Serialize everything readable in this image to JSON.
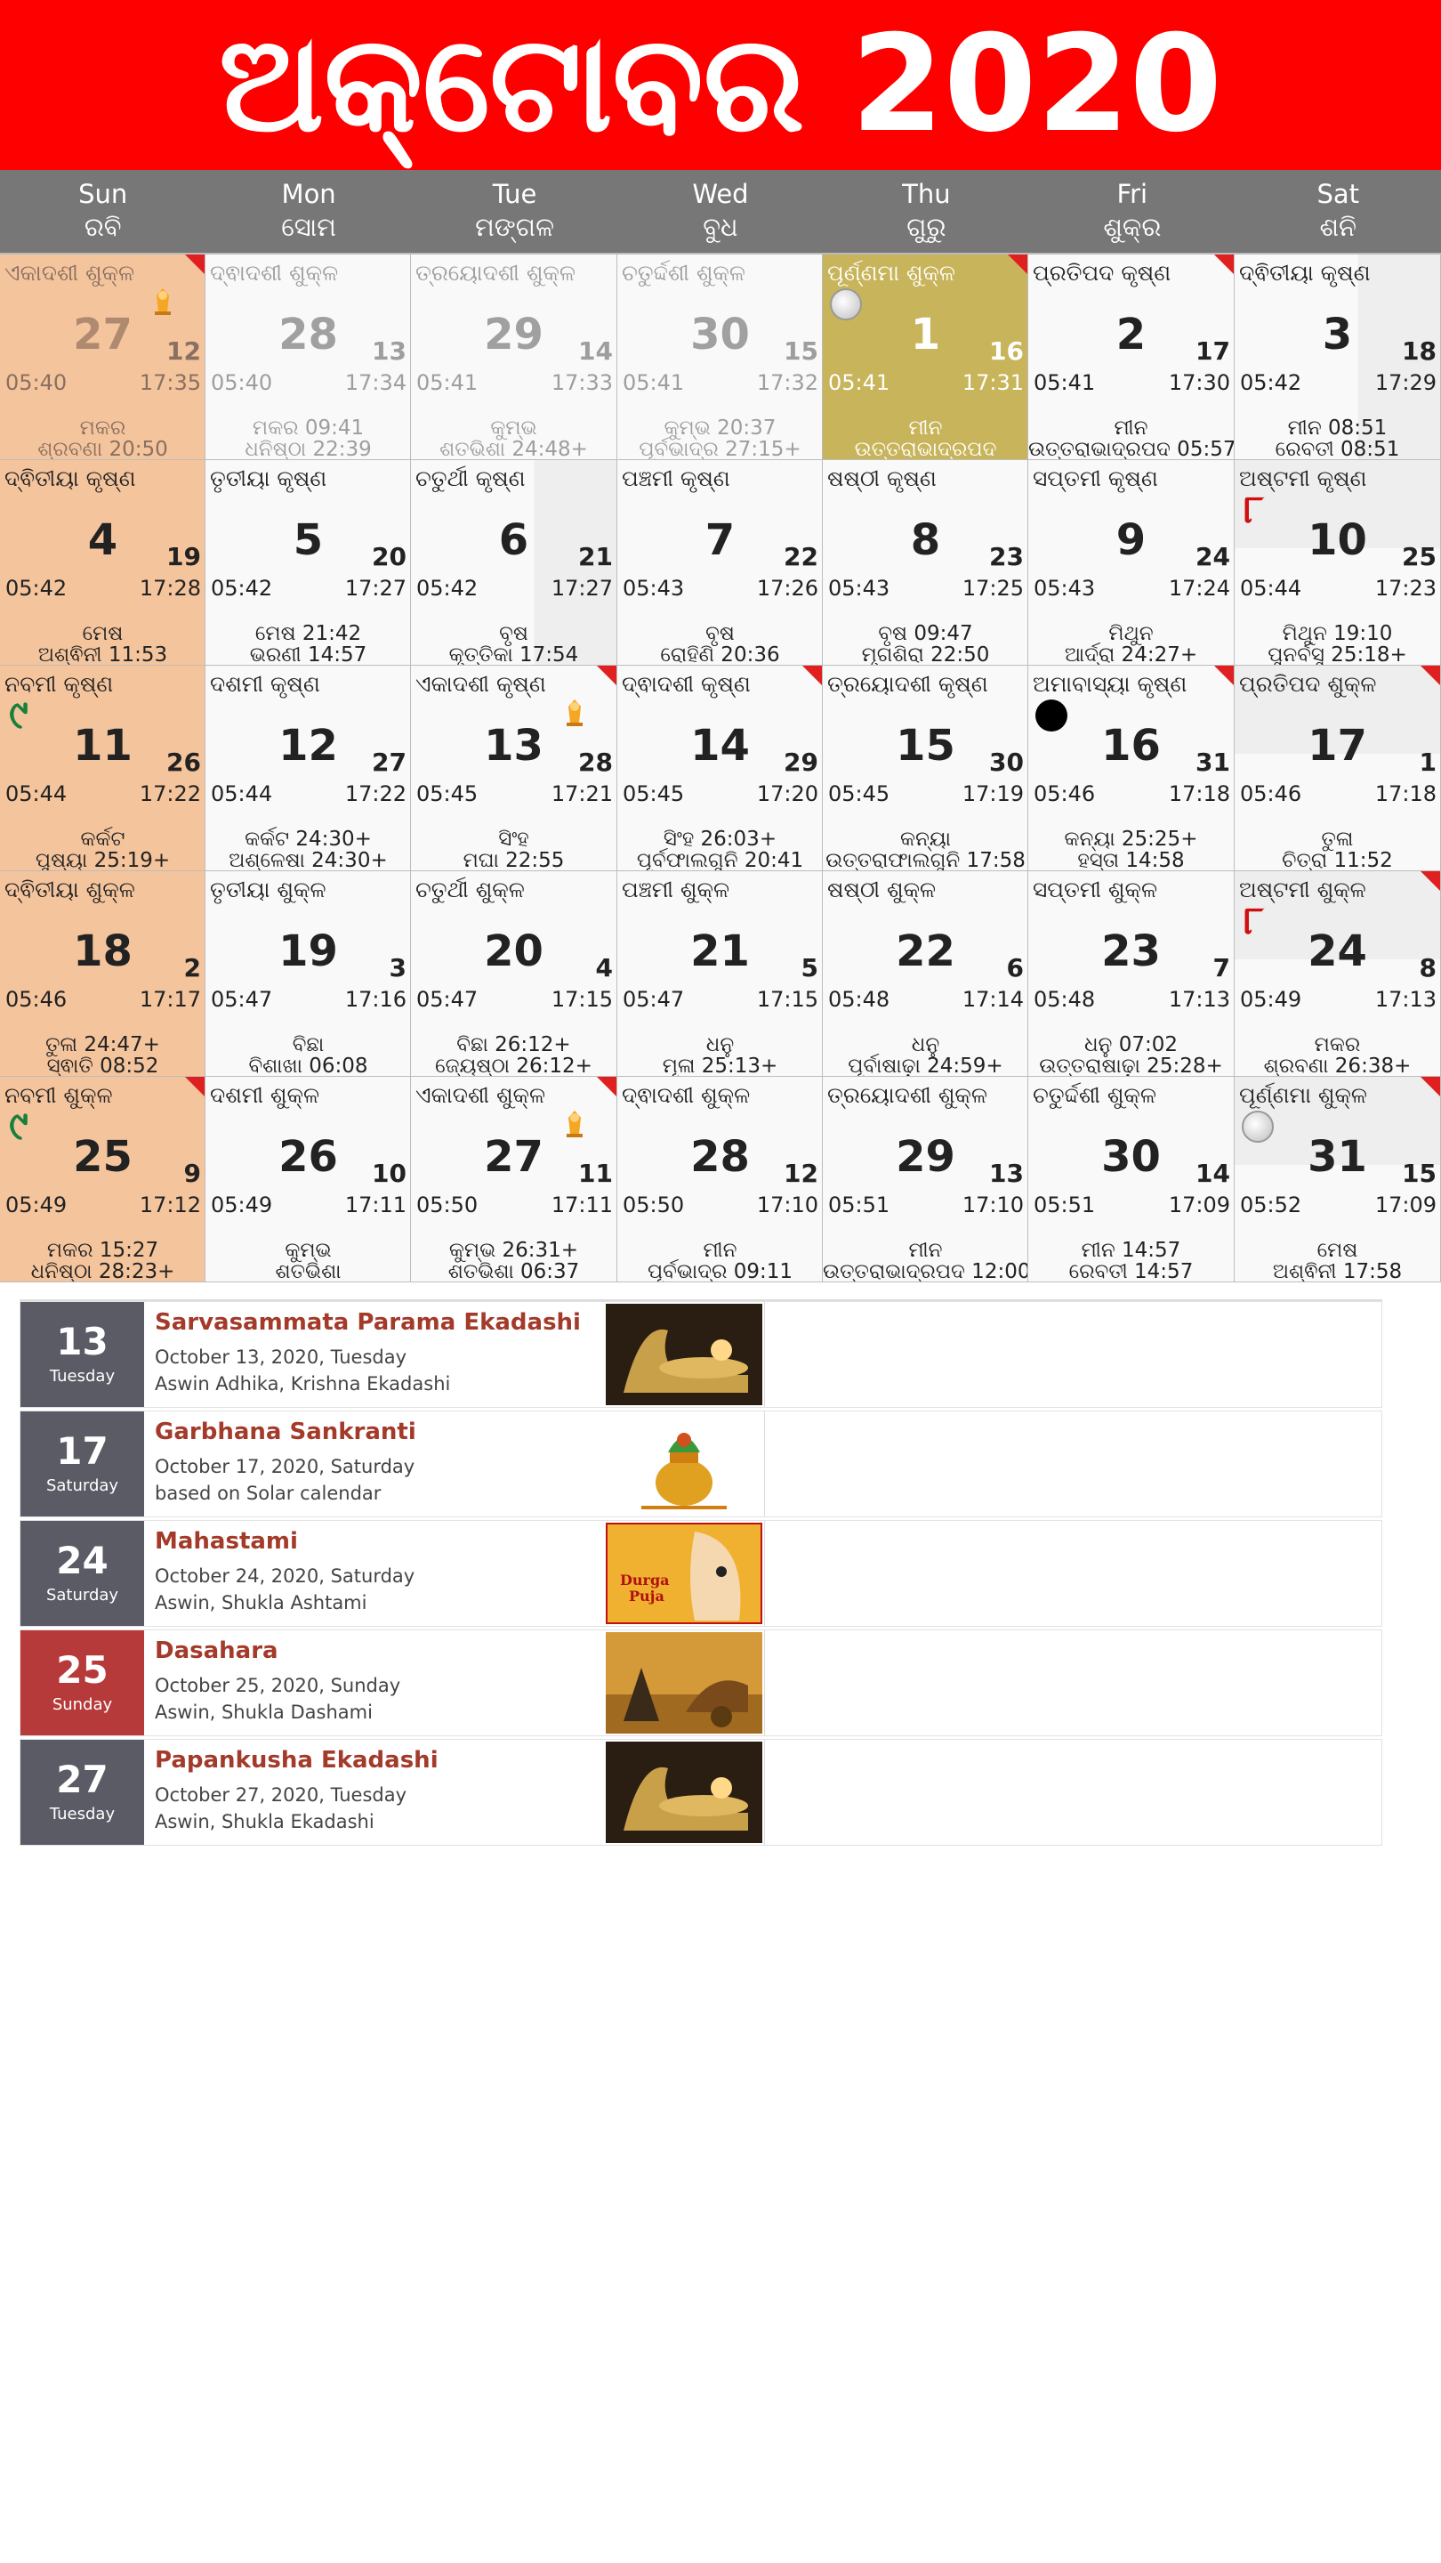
{
  "title": "ଅକ୍ଟୋବର 2020",
  "weekdays": [
    {
      "en": "Sun",
      "or": "ରବି"
    },
    {
      "en": "Mon",
      "or": "ସୋମ"
    },
    {
      "en": "Tue",
      "or": "ମଙ୍ଗଳ"
    },
    {
      "en": "Wed",
      "or": "ବୁଧ"
    },
    {
      "en": "Thu",
      "or": "ଗୁରୁ"
    },
    {
      "en": "Fri",
      "or": "ଶୁକ୍ର"
    },
    {
      "en": "Sat",
      "or": "ଶନି"
    }
  ],
  "cells": [
    {
      "tithi": "ଏକାଦଶୀ ଶୁକ୍ଳ",
      "day": "27",
      "sub": "12",
      "rise": "05:40",
      "set": "17:35",
      "n1": "ମକର",
      "n2": "ଶ୍ରବଣା 20:50",
      "other": true,
      "corner": true,
      "icon": "deity-icon"
    },
    {
      "tithi": "ଦ୍ଵାଦଶୀ ଶୁକ୍ଳ",
      "day": "28",
      "sub": "13",
      "rise": "05:40",
      "set": "17:34",
      "n1": "ମକର 09:41",
      "n2": "ଧନିଷ୍ଠା 22:39",
      "other": true
    },
    {
      "tithi": "ତ୍ରୟୋଦଶୀ ଶୁକ୍ଳ",
      "day": "29",
      "sub": "14",
      "rise": "05:41",
      "set": "17:33",
      "n1": "କୁମ୍ଭ",
      "n2": "ଶତଭିଶା 24:48+",
      "other": true
    },
    {
      "tithi": "ଚତୁର୍ଦ୍ଦଶୀ ଶୁକ୍ଳ",
      "day": "30",
      "sub": "15",
      "rise": "05:41",
      "set": "17:32",
      "n1": "କୁମ୍ଭ 20:37",
      "n2": "ପୂର୍ବଭାଦ୍ର 27:15+",
      "other": true
    },
    {
      "tithi": "ପୂର୍ଣ୍ଣମା ଶୁକ୍ଳ",
      "day": "1",
      "sub": "16",
      "rise": "05:41",
      "set": "17:31",
      "n1": "ମୀନ",
      "n2": "ଉତ୍ତରାଭାଦ୍ରପଦ",
      "full": true,
      "corner": true,
      "icon": "full-moon-icon"
    },
    {
      "tithi": "ପ୍ରତିପଦ କୃଷ୍ଣ",
      "day": "2",
      "sub": "17",
      "rise": "05:41",
      "set": "17:30",
      "n1": "ମୀନ",
      "n2": "ଉତ୍ତରାଭାଦ୍ରପଦ 05:57",
      "corner": true
    },
    {
      "tithi": "ଦ୍ଵିତୀୟା କୃଷ୍ଣ",
      "day": "3",
      "sub": "18",
      "rise": "05:42",
      "set": "17:29",
      "n1": "ମୀନ 08:51",
      "n2": "ରେବତୀ 08:51",
      "shade": "lt2"
    },
    {
      "tithi": "ଦ୍ଵିତୀୟା କୃଷ୍ଣ",
      "day": "4",
      "sub": "19",
      "rise": "05:42",
      "set": "17:28",
      "n1": "ମେଷ",
      "n2": "ଅଶ୍ଵିନୀ 11:53"
    },
    {
      "tithi": "ତୃତୀୟା କୃଷ୍ଣ",
      "day": "5",
      "sub": "20",
      "rise": "05:42",
      "set": "17:27",
      "n1": "ମେଷ 21:42",
      "n2": "ଭରଣୀ 14:57"
    },
    {
      "tithi": "ଚତୁର୍ଥୀ କୃଷ୍ଣ",
      "day": "6",
      "sub": "21",
      "rise": "05:42",
      "set": "17:27",
      "n1": "ବୃଷ",
      "n2": "କୃତ୍ତିକା 17:54",
      "shade": "lt2"
    },
    {
      "tithi": "ପଞ୍ଚମୀ କୃଷ୍ଣ",
      "day": "7",
      "sub": "22",
      "rise": "05:43",
      "set": "17:26",
      "n1": "ବୃଷ",
      "n2": "ରୋହିଣି 20:36"
    },
    {
      "tithi": "ଷଷ୍ଠୀ କୃଷ୍ଣ",
      "day": "8",
      "sub": "23",
      "rise": "05:43",
      "set": "17:25",
      "n1": "ବୃଷ 09:47",
      "n2": "ମୃଗଶିରା 22:50"
    },
    {
      "tithi": "ସପ୍ତମୀ କୃଷ୍ଣ",
      "day": "9",
      "sub": "24",
      "rise": "05:43",
      "set": "17:24",
      "n1": "ମିଥୁନ",
      "n2": "ଆର୍ଦ୍ରା 24:27+"
    },
    {
      "tithi": "ଅଷ୍ଟମୀ କୃଷ୍ଣ",
      "day": "10",
      "sub": "25",
      "rise": "05:44",
      "set": "17:23",
      "n1": "ମିଥୁନ 19:10",
      "n2": "ପୁନର୍ବସୁ 25:18+",
      "icon": "ashtami-icon",
      "glyph": "୮",
      "shade": "lt"
    },
    {
      "tithi": "ନବମୀ କୃଷ୍ଣ",
      "day": "11",
      "sub": "26",
      "rise": "05:44",
      "set": "17:22",
      "n1": "କର୍କଟ",
      "n2": "ପୁଷ୍ୟା 25:19+",
      "icon": "navami-icon",
      "glyph": "୯"
    },
    {
      "tithi": "ଦଶମୀ କୃଷ୍ଣ",
      "day": "12",
      "sub": "27",
      "rise": "05:44",
      "set": "17:22",
      "n1": "କର୍କଟ 24:30+",
      "n2": "ଅଶ୍ଳେଷା 24:30+"
    },
    {
      "tithi": "ଏକାଦଶୀ କୃଷ୍ଣ",
      "day": "13",
      "sub": "28",
      "rise": "05:45",
      "set": "17:21",
      "n1": "ସିଂହ",
      "n2": "ମଘା 22:55",
      "corner": true,
      "icon": "deity-icon"
    },
    {
      "tithi": "ଦ୍ଵାଦଶୀ କୃଷ୍ଣ",
      "day": "14",
      "sub": "29",
      "rise": "05:45",
      "set": "17:20",
      "n1": "ସିଂହ 26:03+",
      "n2": "ପୂର୍ବଫାଲଗୁନି 20:41",
      "corner": true
    },
    {
      "tithi": "ତ୍ରୟୋଦଶୀ କୃଷ୍ଣ",
      "day": "15",
      "sub": "30",
      "rise": "05:45",
      "set": "17:19",
      "n1": "କନ୍ୟା",
      "n2": "ଉତ୍ତରାଫାଲଗୁନି 17:58"
    },
    {
      "tithi": "ଅମାବାସ୍ୟା କୃଷ୍ଣ",
      "day": "16",
      "sub": "31",
      "rise": "05:46",
      "set": "17:18",
      "n1": "କନ୍ୟା 25:25+",
      "n2": "ହସ୍ତା 14:58",
      "corner": true,
      "icon": "new-moon-icon"
    },
    {
      "tithi": "ପ୍ରତିପଦ ଶୁକ୍ଳ",
      "day": "17",
      "sub": "1",
      "rise": "05:46",
      "set": "17:18",
      "n1": "ତୁଳା",
      "n2": "ଚିତ୍ରା 11:52",
      "corner": true,
      "shade": "lt"
    },
    {
      "tithi": "ଦ୍ଵିତୀୟା ଶୁକ୍ଳ",
      "day": "18",
      "sub": "2",
      "rise": "05:46",
      "set": "17:17",
      "n1": "ତୁଳା 24:47+",
      "n2": "ସ୍ଵାତି 08:52"
    },
    {
      "tithi": "ତୃତୀୟା ଶୁକ୍ଳ",
      "day": "19",
      "sub": "3",
      "rise": "05:47",
      "set": "17:16",
      "n1": "ବିଛା",
      "n2": "ବିଶାଖା 06:08"
    },
    {
      "tithi": "ଚତୁର୍ଥୀ ଶୁକ୍ଳ",
      "day": "20",
      "sub": "4",
      "rise": "05:47",
      "set": "17:15",
      "n1": "ବିଛା 26:12+",
      "n2": "ଜ୍ୟେଷ୍ଠା 26:12+"
    },
    {
      "tithi": "ପଞ୍ଚମୀ ଶୁକ୍ଳ",
      "day": "21",
      "sub": "5",
      "rise": "05:47",
      "set": "17:15",
      "n1": "ଧନୁ",
      "n2": "ମୂଳା 25:13+"
    },
    {
      "tithi": "ଷଷ୍ଠୀ ଶୁକ୍ଳ",
      "day": "22",
      "sub": "6",
      "rise": "05:48",
      "set": "17:14",
      "n1": "ଧନୁ",
      "n2": "ପୂର୍ବାଷାଢ଼ା 24:59+"
    },
    {
      "tithi": "ସପ୍ତମୀ ଶୁକ୍ଳ",
      "day": "23",
      "sub": "7",
      "rise": "05:48",
      "set": "17:13",
      "n1": "ଧନୁ 07:02",
      "n2": "ଉତ୍ତରାଷାଢ଼ା 25:28+"
    },
    {
      "tithi": "ଅଷ୍ଟମୀ ଶୁକ୍ଳ",
      "day": "24",
      "sub": "8",
      "rise": "05:49",
      "set": "17:13",
      "n1": "ମକର",
      "n2": "ଶ୍ରବଣା 26:38+",
      "corner": true,
      "icon": "ashtami-icon",
      "glyph": "୮",
      "shade": "lt"
    },
    {
      "tithi": "ନବମୀ ଶୁକ୍ଳ",
      "day": "25",
      "sub": "9",
      "rise": "05:49",
      "set": "17:12",
      "n1": "ମକର 15:27",
      "n2": "ଧନିଷ୍ଠା 28:23+",
      "corner": true,
      "icon": "navami-icon",
      "glyph": "୯"
    },
    {
      "tithi": "ଦଶମୀ ଶୁକ୍ଳ",
      "day": "26",
      "sub": "10",
      "rise": "05:49",
      "set": "17:11",
      "n1": "କୁମ୍ଭ",
      "n2": "ଶତଭିଶା"
    },
    {
      "tithi": "ଏକାଦଶୀ ଶୁକ୍ଳ",
      "day": "27",
      "sub": "11",
      "rise": "05:50",
      "set": "17:11",
      "n1": "କୁମ୍ଭ 26:31+",
      "n2": "ଶତଭିଶା 06:37",
      "corner": true,
      "icon": "deity-icon"
    },
    {
      "tithi": "ଦ୍ଵାଦଶୀ ଶୁକ୍ଳ",
      "day": "28",
      "sub": "12",
      "rise": "05:50",
      "set": "17:10",
      "n1": "ମୀନ",
      "n2": "ପୂର୍ବଭାଦ୍ର 09:11"
    },
    {
      "tithi": "ତ୍ରୟୋଦଶୀ ଶୁକ୍ଳ",
      "day": "29",
      "sub": "13",
      "rise": "05:51",
      "set": "17:10",
      "n1": "ମୀନ",
      "n2": "ଉତ୍ତରାଭାଦ୍ରପଦ 12:00"
    },
    {
      "tithi": "ଚତୁର୍ଦ୍ଦଶୀ ଶୁକ୍ଳ",
      "day": "30",
      "sub": "14",
      "rise": "05:51",
      "set": "17:09",
      "n1": "ମୀନ 14:57",
      "n2": "ରେବତୀ 14:57"
    },
    {
      "tithi": "ପୂର୍ଣ୍ଣମା ଶୁକ୍ଳ",
      "day": "31",
      "sub": "15",
      "rise": "05:52",
      "set": "17:09",
      "n1": "ମେଷ",
      "n2": "ଅଶ୍ଵିନୀ 17:58",
      "corner": true,
      "icon": "full-moon-icon",
      "shade": "lt"
    }
  ],
  "events": [
    {
      "day": "13",
      "weekday": "Tuesday",
      "title": "Sarvasammata Parama Ekadashi",
      "line1": "October 13, 2020, Tuesday",
      "line2": "Aswin Adhika, Krishna Ekadashi",
      "image": "vishnu-reclining-image",
      "accent": "#5b5b66"
    },
    {
      "day": "17",
      "weekday": "Saturday",
      "title": "Garbhana Sankranti",
      "line1": "October 17, 2020, Saturday",
      "line2": "based on Solar calendar",
      "image": "kalash-image",
      "accent": "#5b5b66"
    },
    {
      "day": "24",
      "weekday": "Saturday",
      "title": "Mahastami",
      "line1": "October 24, 2020, Saturday",
      "line2": "Aswin, Shukla Ashtami",
      "image": "durga-puja-image",
      "image_text": "Durga Puja",
      "accent": "#5b5b66"
    },
    {
      "day": "25",
      "weekday": "Sunday",
      "title": "Dasahara",
      "line1": "October 25, 2020, Sunday",
      "line2": "Aswin, Shukla Dashami",
      "image": "rama-chariot-image",
      "accent": "#b73a3a"
    },
    {
      "day": "27",
      "weekday": "Tuesday",
      "title": "Papankusha Ekadashi",
      "line1": "October 27, 2020, Tuesday",
      "line2": "Aswin, Shukla Ekadashi",
      "image": "vishnu-reclining-image",
      "accent": "#5b5b66"
    }
  ],
  "colors": {
    "title_bg": "#ff0000",
    "header_bg": "#777777",
    "sunday": "#f4c49d",
    "purnima": "#c8b45a",
    "event_title": "#a33a2a"
  }
}
